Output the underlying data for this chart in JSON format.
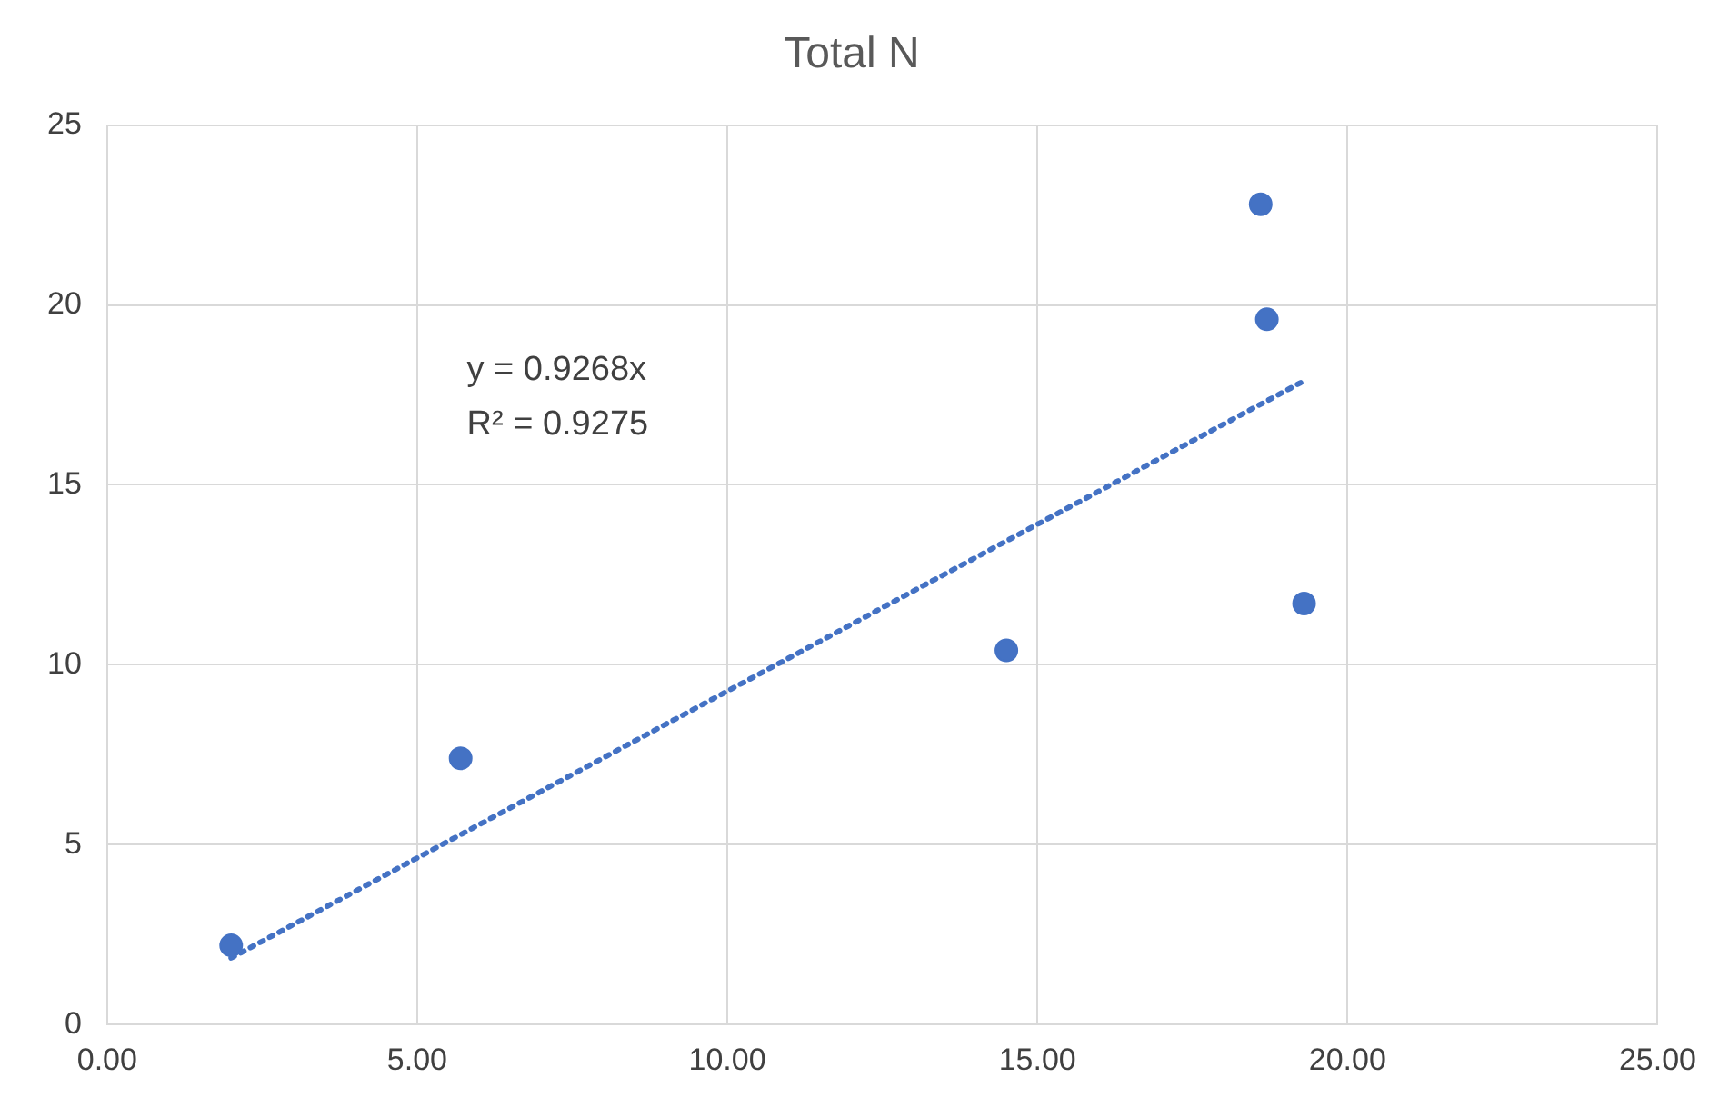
{
  "chart_data": {
    "type": "scatter",
    "title": "Total N",
    "series": [
      {
        "color": "#4472c4",
        "x": [
          2.0,
          5.7,
          14.5,
          18.6,
          18.7,
          19.3
        ],
        "values": [
          2.2,
          7.4,
          10.4,
          22.8,
          19.6,
          11.7
        ],
        "marker": "circle"
      },
      {
        "type": "line",
        "color": "#4472c4",
        "x": [
          2.0,
          19.3
        ],
        "values": [
          1.85,
          17.89
        ],
        "marker": "none",
        "line_style": "dotted"
      }
    ],
    "xlim": [
      0,
      25
    ],
    "xticks": [
      {
        "value": 0,
        "label": "0.00"
      },
      {
        "value": 5,
        "label": "5.00"
      },
      {
        "value": 10,
        "label": "10.00"
      },
      {
        "value": 15,
        "label": "15.00"
      },
      {
        "value": 20,
        "label": "20.00"
      },
      {
        "value": 25,
        "label": "25.00"
      }
    ],
    "ylim": [
      0,
      25
    ],
    "yticks": [
      0,
      5,
      10,
      15,
      20,
      25
    ],
    "grid": true,
    "legend": false,
    "annotations": [
      "y = 0.9268x",
      "R² = 0.9275"
    ]
  }
}
